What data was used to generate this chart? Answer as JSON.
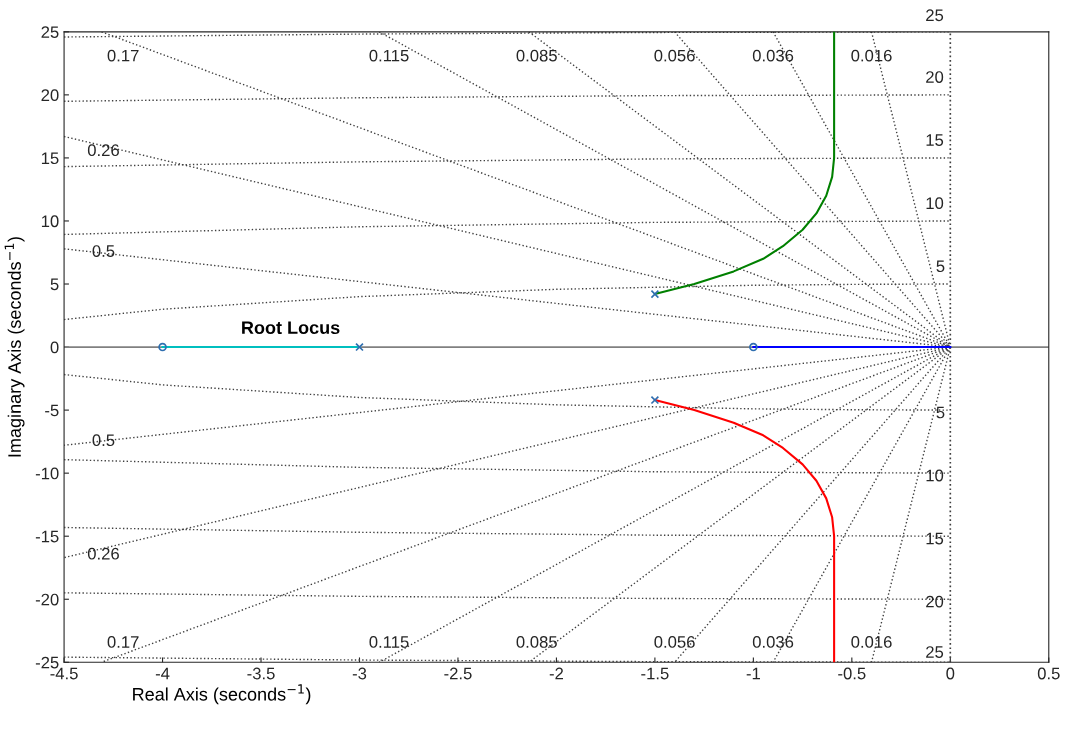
{
  "chart_data": {
    "type": "line",
    "title": "Root Locus",
    "xlabel": "Real Axis (seconds$^{−1}$)",
    "ylabel": "Imaginary Axis (seconds$^{−1}$)",
    "xlim": [
      -4.5,
      0.5
    ],
    "xticks": [
      -4.5,
      -4,
      -3.5,
      -3,
      -2.5,
      -2,
      -1.5,
      -1,
      -0.5,
      0,
      0.5
    ],
    "ylim": [
      -25,
      25
    ],
    "yticks": [
      -25,
      -20,
      -15,
      -10,
      -5,
      0,
      5,
      10,
      15,
      20,
      25
    ],
    "ref_lines": [
      {
        "axis": "y",
        "value": 0,
        "color": "#808080",
        "line_style": "solid"
      },
      {
        "axis": "x",
        "value": 0,
        "color": "#404040",
        "line_style": "dotted"
      }
    ],
    "series": [
      {
        "line_style": "dotted",
        "color": "#404040",
        "x": [
          -0.4,
          0
        ],
        "values": [
          25,
          0
        ]
      },
      {
        "line_style": "dotted",
        "color": "#404040",
        "x": [
          0,
          -0.4
        ],
        "values": [
          0,
          -25
        ]
      },
      {
        "line_style": "dotted",
        "color": "#404040",
        "x": [
          -0.9,
          0
        ],
        "values": [
          25,
          0
        ]
      },
      {
        "line_style": "dotted",
        "color": "#404040",
        "x": [
          0,
          -0.9
        ],
        "values": [
          0,
          -25
        ]
      },
      {
        "line_style": "dotted",
        "color": "#404040",
        "x": [
          -1.4,
          0
        ],
        "values": [
          25,
          0
        ]
      },
      {
        "line_style": "dotted",
        "color": "#404040",
        "x": [
          0,
          -1.4
        ],
        "values": [
          0,
          -25
        ]
      },
      {
        "line_style": "dotted",
        "color": "#404040",
        "x": [
          -2.14,
          0
        ],
        "values": [
          25,
          0
        ]
      },
      {
        "line_style": "dotted",
        "color": "#404040",
        "x": [
          0,
          -2.14
        ],
        "values": [
          0,
          -25
        ]
      },
      {
        "line_style": "dotted",
        "color": "#404040",
        "x": [
          -2.9,
          0
        ],
        "values": [
          25,
          0
        ]
      },
      {
        "line_style": "dotted",
        "color": "#404040",
        "x": [
          0,
          -2.9
        ],
        "values": [
          0,
          -25
        ]
      },
      {
        "line_style": "dotted",
        "color": "#404040",
        "x": [
          -4.31,
          0
        ],
        "values": [
          25,
          0
        ]
      },
      {
        "line_style": "dotted",
        "color": "#404040",
        "x": [
          0,
          -4.31
        ],
        "values": [
          0,
          -25
        ]
      },
      {
        "line_style": "dotted",
        "color": "#404040",
        "x": [
          -4.5,
          0
        ],
        "values": [
          16.7,
          0
        ]
      },
      {
        "line_style": "dotted",
        "color": "#404040",
        "x": [
          0,
          -4.5
        ],
        "values": [
          0,
          -16.7
        ]
      },
      {
        "line_style": "dotted",
        "color": "#404040",
        "x": [
          -4.5,
          0
        ],
        "values": [
          7.79,
          0
        ]
      },
      {
        "line_style": "dotted",
        "color": "#404040",
        "x": [
          0,
          -4.5
        ],
        "values": [
          0,
          -7.79
        ]
      },
      {
        "line_style": "dotted",
        "color": "#404040",
        "x": [
          -4.5,
          -4,
          -3,
          -2,
          -1,
          -0.5,
          0
        ],
        "values": [
          2.18,
          3,
          4,
          4.58,
          4.9,
          4.97,
          5
        ]
      },
      {
        "line_style": "dotted",
        "color": "#404040",
        "x": [
          -4.5,
          -4,
          -3,
          -2,
          -1,
          -0.5,
          0
        ],
        "values": [
          -2.18,
          -3,
          -4,
          -4.58,
          -4.9,
          -4.97,
          -5
        ]
      },
      {
        "line_style": "dotted",
        "color": "#404040",
        "x": [
          -4.5,
          -3,
          -1.5,
          0
        ],
        "values": [
          8.93,
          9.54,
          9.89,
          10
        ]
      },
      {
        "line_style": "dotted",
        "color": "#404040",
        "x": [
          -4.5,
          -3,
          -1.5,
          0
        ],
        "values": [
          -8.93,
          -9.54,
          -9.89,
          -10
        ]
      },
      {
        "line_style": "dotted",
        "color": "#404040",
        "x": [
          -4.5,
          -3,
          -1.5,
          0
        ],
        "values": [
          14.31,
          14.69,
          14.92,
          15
        ]
      },
      {
        "line_style": "dotted",
        "color": "#404040",
        "x": [
          -4.5,
          -3,
          -1.5,
          0
        ],
        "values": [
          -14.31,
          -14.69,
          -14.92,
          -15
        ]
      },
      {
        "line_style": "dotted",
        "color": "#404040",
        "x": [
          -4.5,
          -3,
          -1.5,
          0
        ],
        "values": [
          19.49,
          19.77,
          19.94,
          20
        ]
      },
      {
        "line_style": "dotted",
        "color": "#404040",
        "x": [
          -4.5,
          -3,
          -1.5,
          0
        ],
        "values": [
          -19.49,
          -19.77,
          -19.94,
          -20
        ]
      },
      {
        "line_style": "dotted",
        "color": "#404040",
        "x": [
          -4.5,
          -3,
          -1.5,
          0
        ],
        "values": [
          24.59,
          24.82,
          24.95,
          25
        ]
      },
      {
        "line_style": "dotted",
        "color": "#404040",
        "x": [
          -4.5,
          -3,
          -1.5,
          0
        ],
        "values": [
          -24.59,
          -24.82,
          -24.95,
          -25
        ]
      },
      {
        "line_style": "solid",
        "color": "#00bfbf",
        "x": [
          -4,
          -3
        ],
        "values": [
          0,
          0
        ]
      },
      {
        "line_style": "solid",
        "color": "#0000ff",
        "x": [
          -1,
          0
        ],
        "values": [
          0,
          0
        ]
      },
      {
        "line_style": "solid",
        "color": "#008000",
        "x": [
          -1.5,
          -1.3,
          -1.1,
          -0.95,
          -0.85,
          -0.75,
          -0.68,
          -0.63,
          -0.6,
          -0.59,
          -0.59
        ],
        "values": [
          4.2,
          5.0,
          6.0,
          7.0,
          8.0,
          9.3,
          10.6,
          12.0,
          13.5,
          15.0,
          25
        ]
      },
      {
        "line_style": "solid",
        "color": "#ff0000",
        "x": [
          -1.5,
          -1.3,
          -1.1,
          -0.95,
          -0.85,
          -0.75,
          -0.68,
          -0.63,
          -0.6,
          -0.59,
          -0.59
        ],
        "values": [
          -4.2,
          -5.0,
          -6.0,
          -7.0,
          -8.0,
          -9.3,
          -10.6,
          -12.0,
          -13.5,
          -15.0,
          -25
        ]
      },
      {
        "type": "scatter",
        "marker": "cross",
        "color": "#2f6fb0",
        "x": [
          -1.5,
          -1.5,
          -3
        ],
        "values": [
          4.2,
          -4.2,
          0
        ]
      },
      {
        "type": "scatter",
        "marker": "circle",
        "color": "#2f6fb0",
        "x": [
          -4,
          -1
        ],
        "values": [
          0,
          0
        ]
      }
    ],
    "annotations": [
      "0.17",
      "0.115",
      "0.085",
      "0.056",
      "0.036",
      "0.016",
      "0.26",
      "0.5",
      "0.17",
      "0.115",
      "0.085",
      "0.056",
      "0.036",
      "0.016",
      "0.26",
      "0.5",
      "25",
      "20",
      "15",
      "10",
      "5",
      "5",
      "10",
      "15",
      "20",
      "25"
    ]
  }
}
